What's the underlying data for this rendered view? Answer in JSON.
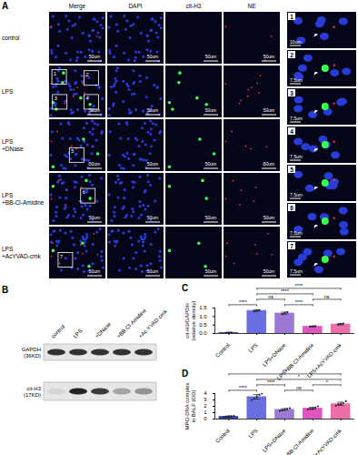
{
  "panel_labels": {
    "a": "A",
    "b": "B",
    "c": "C",
    "d": "D"
  },
  "panel_a": {
    "columns": [
      "Merge",
      "DAPI",
      "cit-H3",
      "NE"
    ],
    "rows": [
      [
        "control"
      ],
      [
        "LPS"
      ],
      [
        "LPS",
        "+DNase"
      ],
      [
        "LPS",
        "+BB-Cl-Amidine"
      ],
      [
        "LPS",
        "+AcYVAD-cmk"
      ]
    ],
    "scale_bar": "50um",
    "boxes": [
      [],
      [
        "1",
        "2",
        "3",
        "4"
      ],
      [
        "5"
      ],
      [
        "6"
      ],
      [
        "7"
      ]
    ],
    "insets": [
      {
        "label": "1",
        "scale_bar": "10um"
      },
      {
        "label": "2",
        "scale_bar": "7.5um"
      },
      {
        "label": "3",
        "scale_bar": "7.5um"
      },
      {
        "label": "4",
        "scale_bar": "7.5um"
      },
      {
        "label": "5",
        "scale_bar": "7.5um"
      },
      {
        "label": "6",
        "scale_bar": "7.5um"
      },
      {
        "label": "7",
        "scale_bar": "7.5um"
      }
    ]
  },
  "panel_b": {
    "lanes": [
      "control",
      "LPS",
      "+DNase",
      "+BB-Cl-Amidine",
      "+Ac-YVAD-cmk"
    ],
    "blots": [
      [
        "GAPDH",
        "(36KD)"
      ],
      [
        "cit-H3",
        "(17KD)"
      ]
    ]
  },
  "chart_data": [
    {
      "type": "bar",
      "ylabel": "cit-H3/GAPDH\n(relative density)",
      "categories": [
        "Control",
        "LPS",
        "LPS+DNase",
        "LPS+BB-Cl-Amidine",
        "LPS+AcYVAD-cmk"
      ],
      "values": [
        0.05,
        1.35,
        1.2,
        0.42,
        0.55
      ],
      "errors": [
        0.02,
        0.05,
        0.06,
        0.02,
        0.04
      ],
      "points": [
        [
          0.04,
          0.05,
          0.06
        ],
        [
          1.31,
          1.36,
          1.38
        ],
        [
          1.14,
          1.2,
          1.26
        ],
        [
          0.41,
          0.42,
          0.43
        ],
        [
          0.51,
          0.55,
          0.58
        ]
      ],
      "colors": [
        "#2f3fb5",
        "#6a6ee0",
        "#9c79d4",
        "#e055c0",
        "#ec6fa8"
      ],
      "ylim": [
        0,
        1.5
      ],
      "yticks": [
        {
          "value": 0,
          "label": "0.0"
        },
        {
          "value": 0.5,
          "label": "0.5"
        },
        {
          "value": 1,
          "label": "1.0"
        },
        {
          "value": 1.5,
          "label": "1.5"
        }
      ],
      "annotations": [
        {
          "from": "Control",
          "to": "LPS",
          "text": "****"
        },
        {
          "from": "LPS",
          "to": "LPS+DNase",
          "text": "ns"
        },
        {
          "from": "LPS",
          "to": "LPS+BB-Cl-Amidine",
          "text": "****"
        },
        {
          "from": "LPS",
          "to": "LPS+AcYVAD-cmk",
          "text": "****"
        },
        {
          "from": "LPS+DNase",
          "to": "LPS+BB-Cl-Amidine",
          "text": "****"
        },
        {
          "from": "LPS+BB-Cl-Amidine",
          "to": "LPS+AcYVAD-cmk",
          "text": "ns"
        }
      ]
    },
    {
      "type": "bar",
      "ylabel": "MPO-DNA complex\nin BALF (OD)",
      "categories": [
        "Control",
        "LPS",
        "LPS+DNase",
        "LPS+BB-Cl-Amidine",
        "LPS+AcYVAD-cmk"
      ],
      "values": [
        0.4,
        3.5,
        1.5,
        1.7,
        2.4
      ],
      "errors": [
        0.08,
        0.35,
        0.15,
        0.15,
        0.25
      ],
      "points": [
        [
          0.3,
          0.35,
          0.4,
          0.45,
          0.5
        ],
        [
          3.0,
          3.2,
          3.5,
          3.8,
          4.0
        ],
        [
          1.3,
          1.4,
          1.5,
          1.6,
          1.7
        ],
        [
          1.5,
          1.6,
          1.6,
          1.8,
          2.0
        ],
        [
          2.1,
          2.3,
          2.3,
          2.5,
          2.8
        ]
      ],
      "colors": [
        "#2f3fb5",
        "#6a6ee0",
        "#9c79d4",
        "#e055c0",
        "#ec6fa8"
      ],
      "ylim": [
        0,
        4
      ],
      "yticks": [
        0,
        1,
        2,
        3,
        4
      ],
      "annotations": [
        {
          "from": "Control",
          "to": "LPS+AcYVAD-cmk",
          "text": "**"
        },
        {
          "from": "Control",
          "to": "LPS",
          "text": "****"
        },
        {
          "from": "LPS",
          "to": "LPS+DNase",
          "text": "****"
        },
        {
          "from": "LPS+DNase",
          "to": "LPS+BB-Cl-Amidine",
          "text": "ns"
        },
        {
          "from": "LPS",
          "to": "LPS+AcYVAD-cmk",
          "text": "*"
        },
        {
          "from": "LPS+BB-Cl-Amidine",
          "to": "LPS+AcYVAD-cmk",
          "text": "*"
        }
      ]
    }
  ]
}
